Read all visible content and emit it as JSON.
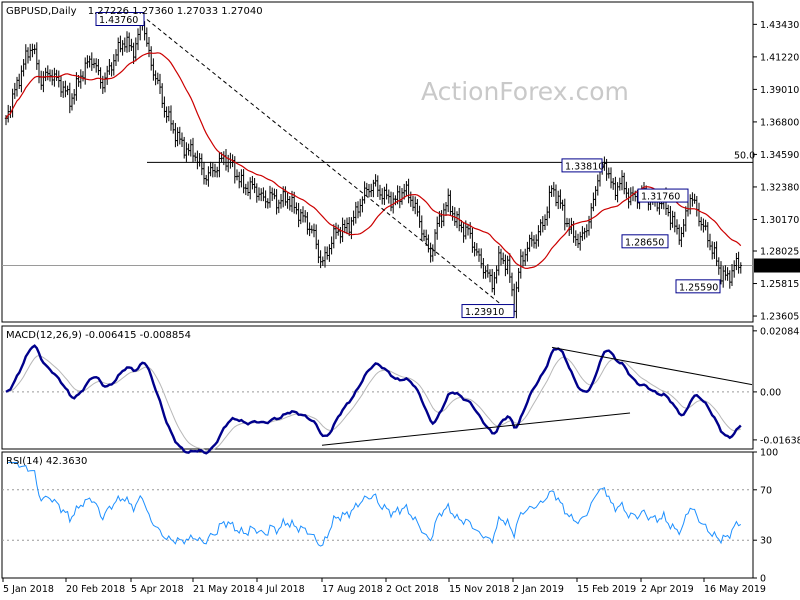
{
  "chart_data": [
    {
      "type": "ohlc-bar",
      "title": "GBPUSD,Daily",
      "ohlc_header": "1.27226 1.27360 1.27033 1.27040",
      "watermark": "ActionForex.com",
      "y_ticks": [
        "1.43430",
        "1.41220",
        "1.39010",
        "1.36800",
        "1.34590",
        "1.32380",
        "1.30170",
        "1.28025",
        "1.25815",
        "1.23605"
      ],
      "y_tick_values": [
        1.4343,
        1.4122,
        1.3901,
        1.368,
        1.3459,
        1.3238,
        1.3017,
        1.28025,
        1.25815,
        1.23605
      ],
      "ylim": [
        1.232,
        1.4495
      ],
      "x_tick_labels": [
        "5 Jan 2018",
        "20 Feb 2018",
        "5 Apr 2018",
        "21 May 2018",
        "4 Jul 2018",
        "17 Aug 2018",
        "2 Oct 2018",
        "15 Nov 2018",
        "2 Jan 2019",
        "15 Feb 2019",
        "2 Apr 2019",
        "16 May 2019"
      ],
      "current_price": "1.27040",
      "current_value": 1.2704,
      "horizontal_level": {
        "value": 1.3405,
        "label": "50.0"
      },
      "annotations": [
        {
          "text": "1.43760",
          "value": 1.4376
        },
        {
          "text": "1.33810",
          "value": 1.3381
        },
        {
          "text": "1.31760",
          "value": 1.3176
        },
        {
          "text": "1.28650",
          "value": 1.2865
        },
        {
          "text": "1.25590",
          "value": 1.2559
        },
        {
          "text": "1.23910",
          "value": 1.2391
        }
      ],
      "series": [
        {
          "name": "",
          "color": "#000000",
          "role": "price"
        },
        {
          "name": "",
          "color": "#cc0000",
          "role": "moving-average"
        }
      ]
    },
    {
      "type": "line",
      "title": "MACD(12,26,9) -0.006415 -0.008854",
      "y_ticks": [
        "0.020848",
        "0.00",
        "-0.016389"
      ],
      "y_tick_values": [
        0.020848,
        0.0,
        -0.016389
      ],
      "ylim": [
        -0.0195,
        0.0225
      ],
      "series": [
        {
          "name": "",
          "color": "#00008b",
          "role": "macd"
        },
        {
          "name": "",
          "color": "#b8b8b8",
          "role": "signal"
        }
      ]
    },
    {
      "type": "line",
      "title": "RSI(14) 42.3630",
      "y_ticks": [
        "100",
        "70",
        "30",
        "0"
      ],
      "y_tick_values": [
        100,
        70,
        30,
        0
      ],
      "ylim": [
        0,
        100
      ],
      "levels": [
        70,
        30
      ],
      "series": [
        {
          "name": "",
          "color": "#1e90ff",
          "role": "rsi"
        }
      ]
    }
  ],
  "colors": {
    "price": "#000000",
    "ma": "#cc0000",
    "macd": "#00008b",
    "signal": "#b8b8b8",
    "rsi": "#1e90ff",
    "annotation_border": "#00008b",
    "grid_dots": "#9a9a9a"
  }
}
